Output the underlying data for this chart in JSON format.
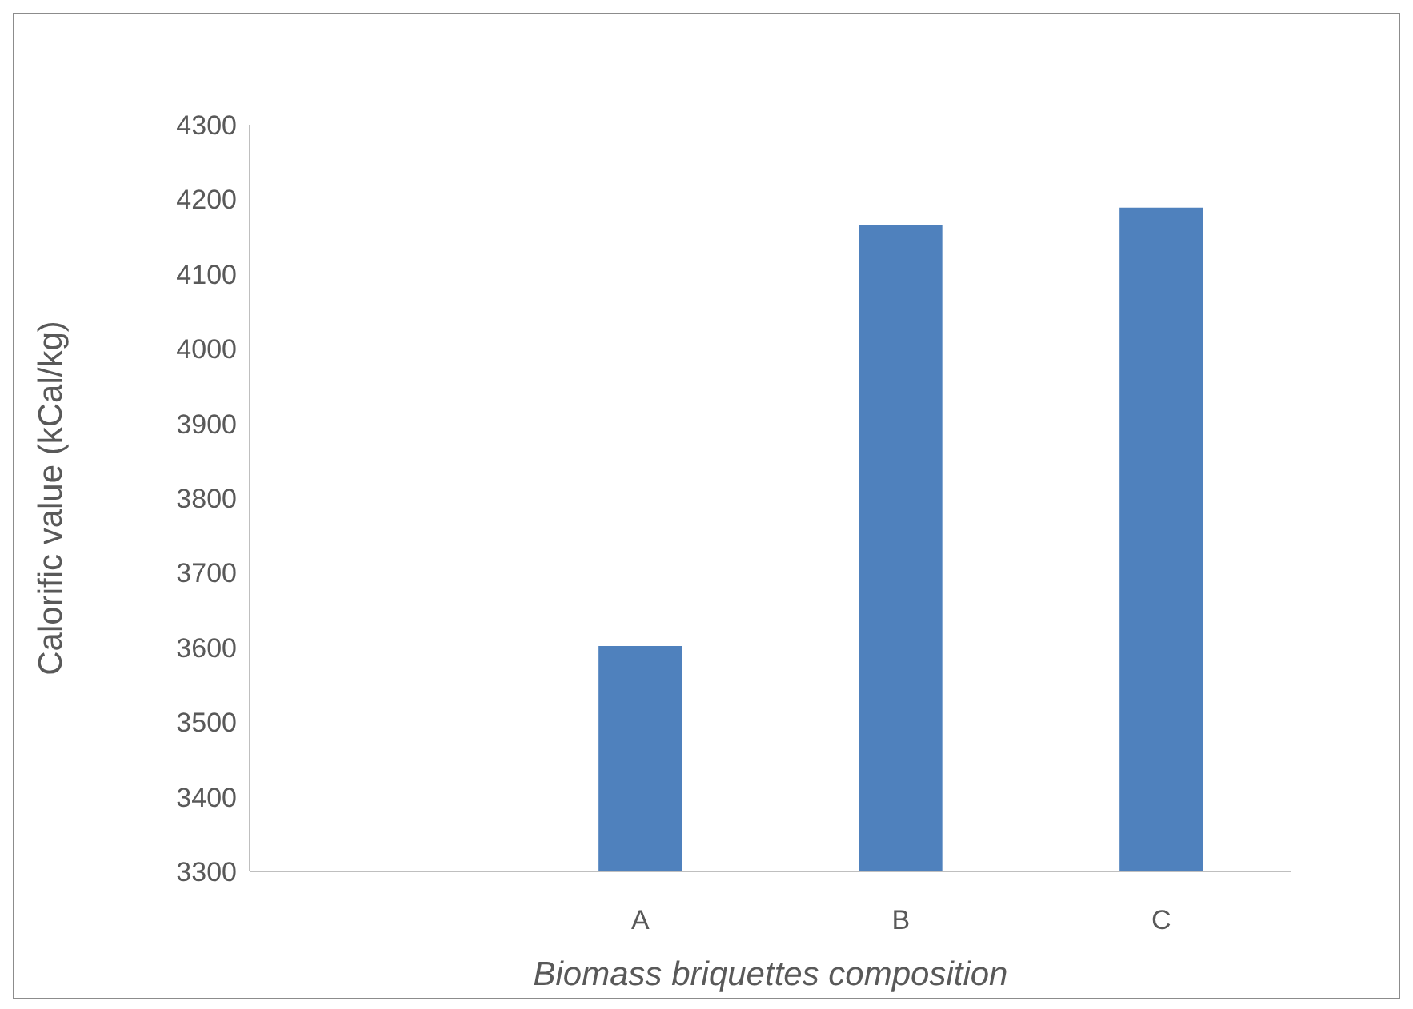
{
  "chart_data": {
    "type": "bar",
    "xlabel": "Biomass briquettes composition",
    "ylabel": "Calorific value (kCal/kg)",
    "categories": [
      null,
      "A",
      "B",
      "C"
    ],
    "values": [
      null,
      3602,
      4165,
      4189
    ],
    "color": "#4f81bd",
    "ylim": [
      3300,
      4300
    ],
    "yticks": [
      3300,
      3400,
      3500,
      3600,
      3700,
      3800,
      3900,
      4000,
      4100,
      4200,
      4300
    ],
    "grid": false,
    "legend": false
  }
}
